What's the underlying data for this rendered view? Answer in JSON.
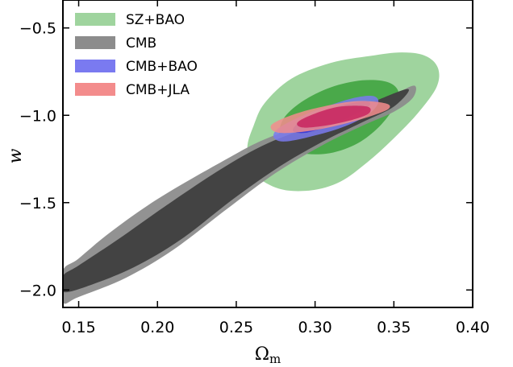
{
  "chart_data": {
    "type": "contour",
    "xlabel": "Ωm",
    "ylabel": "w",
    "xlim": [
      0.14,
      0.4
    ],
    "ylim": [
      -2.1,
      -0.34
    ],
    "xticks": [
      0.15,
      0.2,
      0.25,
      0.3,
      0.35,
      0.4
    ],
    "yticks": [
      -0.5,
      -1.0,
      -1.5,
      -2.0
    ],
    "xtick_labels": [
      "0.15",
      "0.20",
      "0.25",
      "0.30",
      "0.35",
      "0.40"
    ],
    "ytick_labels": [
      "−0.5",
      "−1.0",
      "−1.5",
      "−2.0"
    ],
    "legend_position": "top-left",
    "series": [
      {
        "name": "SZ+BAO",
        "colors": [
          "#9fd49e",
          "#4aa94a"
        ],
        "contours": [
          [
            [
              0.285,
              -0.79
            ],
            [
              0.31,
              -0.7
            ],
            [
              0.335,
              -0.66
            ],
            [
              0.355,
              -0.64
            ],
            [
              0.37,
              -0.66
            ],
            [
              0.378,
              -0.73
            ],
            [
              0.377,
              -0.84
            ],
            [
              0.365,
              -0.99
            ],
            [
              0.349,
              -1.14
            ],
            [
              0.333,
              -1.27
            ],
            [
              0.316,
              -1.38
            ],
            [
              0.297,
              -1.43
            ],
            [
              0.277,
              -1.42
            ],
            [
              0.261,
              -1.33
            ],
            [
              0.257,
              -1.19
            ],
            [
              0.261,
              -1.06
            ],
            [
              0.268,
              -0.93
            ]
          ],
          [
            [
              0.292,
              -0.92
            ],
            [
              0.31,
              -0.84
            ],
            [
              0.33,
              -0.8
            ],
            [
              0.346,
              -0.81
            ],
            [
              0.353,
              -0.87
            ],
            [
              0.349,
              -0.97
            ],
            [
              0.339,
              -1.08
            ],
            [
              0.325,
              -1.17
            ],
            [
              0.307,
              -1.22
            ],
            [
              0.289,
              -1.21
            ],
            [
              0.278,
              -1.13
            ],
            [
              0.28,
              -1.02
            ]
          ]
        ]
      },
      {
        "name": "CMB",
        "colors": [
          "#8c8c8c",
          "#3f3f3f"
        ],
        "contours": [
          [
            [
              0.363,
              -0.83
            ],
            [
              0.35,
              -0.88
            ],
            [
              0.33,
              -0.95
            ],
            [
              0.305,
              -1.03
            ],
            [
              0.27,
              -1.13
            ],
            [
              0.24,
              -1.27
            ],
            [
              0.2,
              -1.48
            ],
            [
              0.17,
              -1.67
            ],
            [
              0.15,
              -1.82
            ],
            [
              0.14,
              -1.89
            ],
            [
              0.14,
              -2.07
            ],
            [
              0.15,
              -2.04
            ],
            [
              0.18,
              -1.93
            ],
            [
              0.21,
              -1.77
            ],
            [
              0.245,
              -1.53
            ],
            [
              0.275,
              -1.33
            ],
            [
              0.305,
              -1.17
            ],
            [
              0.33,
              -1.06
            ],
            [
              0.35,
              -0.98
            ],
            [
              0.362,
              -0.9
            ]
          ],
          [
            [
              0.359,
              -0.85
            ],
            [
              0.335,
              -0.93
            ],
            [
              0.305,
              -1.04
            ],
            [
              0.27,
              -1.16
            ],
            [
              0.24,
              -1.31
            ],
            [
              0.205,
              -1.52
            ],
            [
              0.175,
              -1.71
            ],
            [
              0.15,
              -1.86
            ],
            [
              0.14,
              -1.92
            ],
            [
              0.14,
              -2.01
            ],
            [
              0.155,
              -1.98
            ],
            [
              0.185,
              -1.87
            ],
            [
              0.215,
              -1.71
            ],
            [
              0.248,
              -1.48
            ],
            [
              0.278,
              -1.29
            ],
            [
              0.305,
              -1.15
            ],
            [
              0.33,
              -1.04
            ],
            [
              0.35,
              -0.95
            ]
          ]
        ]
      },
      {
        "name": "CMB+BAO",
        "colors": [
          "#7a7af0",
          "#3535d6"
        ],
        "contours": [
          [
            [
              0.337,
              -0.89
            ],
            [
              0.325,
              -0.9
            ],
            [
              0.307,
              -0.95
            ],
            [
              0.29,
              -1.01
            ],
            [
              0.276,
              -1.08
            ],
            [
              0.274,
              -1.13
            ],
            [
              0.281,
              -1.15
            ],
            [
              0.298,
              -1.12
            ],
            [
              0.317,
              -1.07
            ],
            [
              0.333,
              -1.0
            ],
            [
              0.34,
              -0.93
            ]
          ],
          [
            [
              0.333,
              -0.92
            ],
            [
              0.318,
              -0.94
            ],
            [
              0.302,
              -0.99
            ],
            [
              0.29,
              -1.04
            ],
            [
              0.286,
              -1.09
            ],
            [
              0.294,
              -1.1
            ],
            [
              0.309,
              -1.06
            ],
            [
              0.324,
              -1.0
            ],
            [
              0.334,
              -0.95
            ]
          ]
        ]
      },
      {
        "name": "CMB+JLA",
        "colors": [
          "#f38c8c",
          "#c8245e"
        ],
        "contours": [
          [
            [
              0.344,
              -0.93
            ],
            [
              0.325,
              -0.92
            ],
            [
              0.3,
              -0.96
            ],
            [
              0.282,
              -1.01
            ],
            [
              0.272,
              -1.06
            ],
            [
              0.277,
              -1.1
            ],
            [
              0.296,
              -1.09
            ],
            [
              0.318,
              -1.05
            ],
            [
              0.337,
              -1.0
            ],
            [
              0.347,
              -0.96
            ]
          ],
          [
            [
              0.333,
              -0.95
            ],
            [
              0.316,
              -0.95
            ],
            [
              0.3,
              -0.99
            ],
            [
              0.289,
              -1.04
            ],
            [
              0.292,
              -1.07
            ],
            [
              0.306,
              -1.06
            ],
            [
              0.322,
              -1.03
            ],
            [
              0.334,
              -0.99
            ]
          ]
        ]
      }
    ]
  }
}
